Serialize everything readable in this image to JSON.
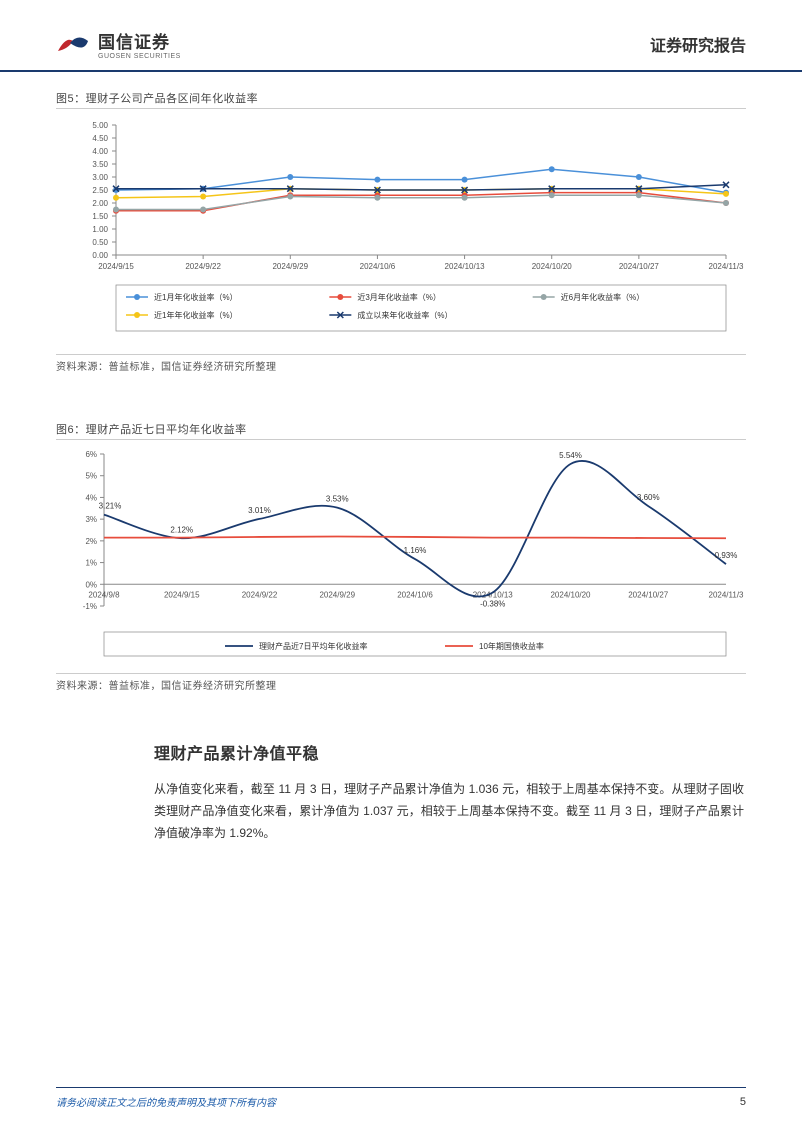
{
  "header": {
    "company_cn": "国信证券",
    "company_en": "GUOSEN SECURITIES",
    "report_type": "证券研究报告",
    "logo_colors": {
      "red": "#c1272d",
      "blue": "#1a3a6e"
    }
  },
  "fig5": {
    "title": "图5：理财子公司产品各区间年化收益率",
    "type": "line",
    "x_labels": [
      "2024/9/15",
      "2024/9/22",
      "2024/9/29",
      "2024/10/6",
      "2024/10/13",
      "2024/10/20",
      "2024/10/27",
      "2024/11/3"
    ],
    "ylim": [
      0,
      5.0
    ],
    "ytick_step": 0.5,
    "axis_color": "#888",
    "grid": "off",
    "tick_fontsize": 8,
    "legend_fontsize": 8,
    "series": [
      {
        "name": "近1月年化收益率（%）",
        "color": "#4a90d9",
        "marker": "circle",
        "values": [
          2.5,
          2.55,
          3.0,
          2.9,
          2.9,
          3.3,
          3.0,
          2.4
        ]
      },
      {
        "name": "近3月年化收益率（%）",
        "color": "#e74c3c",
        "marker": "circle",
        "values": [
          1.7,
          1.7,
          2.3,
          2.3,
          2.3,
          2.4,
          2.4,
          2.0
        ]
      },
      {
        "name": "近6月年化收益率（%）",
        "color": "#95a5a6",
        "marker": "circle",
        "values": [
          1.75,
          1.75,
          2.25,
          2.2,
          2.2,
          2.3,
          2.3,
          2.0
        ]
      },
      {
        "name": "近1年年化收益率（%）",
        "color": "#f5c518",
        "marker": "circle",
        "values": [
          2.2,
          2.25,
          2.55,
          2.5,
          2.5,
          2.55,
          2.55,
          2.35
        ]
      },
      {
        "name": "成立以来年化收益率（%）",
        "color": "#1a3a6e",
        "marker": "x",
        "values": [
          2.55,
          2.55,
          2.55,
          2.5,
          2.5,
          2.55,
          2.55,
          2.7
        ]
      }
    ],
    "legend_layout": "below",
    "legend_border": "#888",
    "source": "资料来源：普益标准，国信证券经济研究所整理"
  },
  "fig6": {
    "title": "图6：理财产品近七日平均年化收益率",
    "type": "line",
    "x_labels": [
      "2024/9/8",
      "2024/9/15",
      "2024/9/22",
      "2024/9/29",
      "2024/10/6",
      "2024/10/13",
      "2024/10/20",
      "2024/10/27",
      "2024/11/3"
    ],
    "ylim": [
      -1,
      6
    ],
    "yticks": [
      "-1%",
      "0%",
      "1%",
      "2%",
      "3%",
      "4%",
      "5%",
      "6%"
    ],
    "axis_color": "#888",
    "tick_fontsize": 8,
    "legend_fontsize": 8,
    "series": [
      {
        "name": "理财产品近7日平均年化收益率",
        "color": "#1a3a6e",
        "marker": "none",
        "line_width": 1.8,
        "values": [
          3.21,
          2.12,
          3.01,
          3.53,
          1.16,
          -0.38,
          5.54,
          3.6,
          0.93
        ],
        "smooth": true,
        "point_labels": [
          "3.21%",
          "2.12%",
          "3.01%",
          "3.53%",
          "1.16%",
          "-0.38%",
          "5.54%",
          "3.60%",
          "0.93%"
        ]
      },
      {
        "name": "10年期国债收益率",
        "color": "#e74c3c",
        "marker": "none",
        "line_width": 1.8,
        "values": [
          2.15,
          2.15,
          2.18,
          2.2,
          2.18,
          2.15,
          2.15,
          2.13,
          2.12
        ]
      }
    ],
    "legend_layout": "below",
    "legend_border": "#888",
    "source": "资料来源：普益标准，国信证券经济研究所整理"
  },
  "section": {
    "title": "理财产品累计净值平稳",
    "body": "从净值变化来看，截至 11 月 3 日，理财子产品累计净值为 1.036 元，相较于上周基本保持不变。从理财子固收类理财产品净值变化来看，累计净值为 1.037 元，相较于上周基本保持不变。截至 11 月 3 日，理财子产品累计净值破净率为 1.92%。"
  },
  "footer": {
    "disclaimer": "请务必阅读正文之后的免责声明及其项下所有内容",
    "page": "5"
  }
}
